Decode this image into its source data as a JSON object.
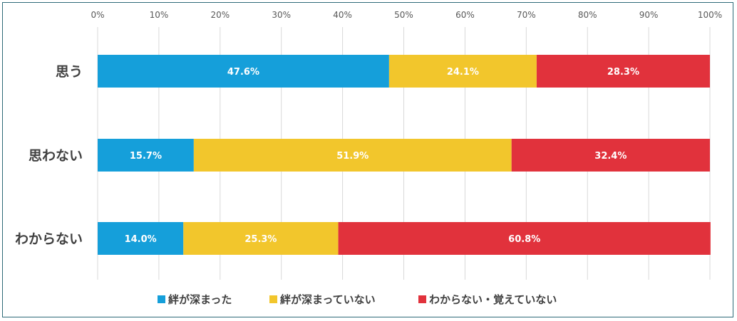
{
  "chart_data": {
    "type": "bar",
    "orientation": "horizontal",
    "stacked": true,
    "percent": true,
    "categories": [
      "思う",
      "思わない",
      "わからない"
    ],
    "x_ticks": [
      "0%",
      "10%",
      "20%",
      "30%",
      "40%",
      "50%",
      "60%",
      "70%",
      "80%",
      "90%",
      "100%"
    ],
    "xlim": [
      0,
      100
    ],
    "grid": true,
    "legend_position": "bottom",
    "series": [
      {
        "name": "絆が深まった",
        "color": "#159fda",
        "values": [
          47.6,
          15.7,
          14.0
        ],
        "labels": [
          "47.6%",
          "15.7%",
          "14.0%"
        ]
      },
      {
        "name": "絆が深まっていない",
        "color": "#f2c62c",
        "values": [
          24.1,
          51.9,
          25.3
        ],
        "labels": [
          "24.1%",
          "51.9%",
          "25.3%"
        ]
      },
      {
        "name": "わからない・覚えていない",
        "color": "#e1323c",
        "values": [
          28.3,
          32.4,
          60.8
        ],
        "labels": [
          "28.3%",
          "32.4%",
          "60.8%"
        ]
      }
    ]
  }
}
